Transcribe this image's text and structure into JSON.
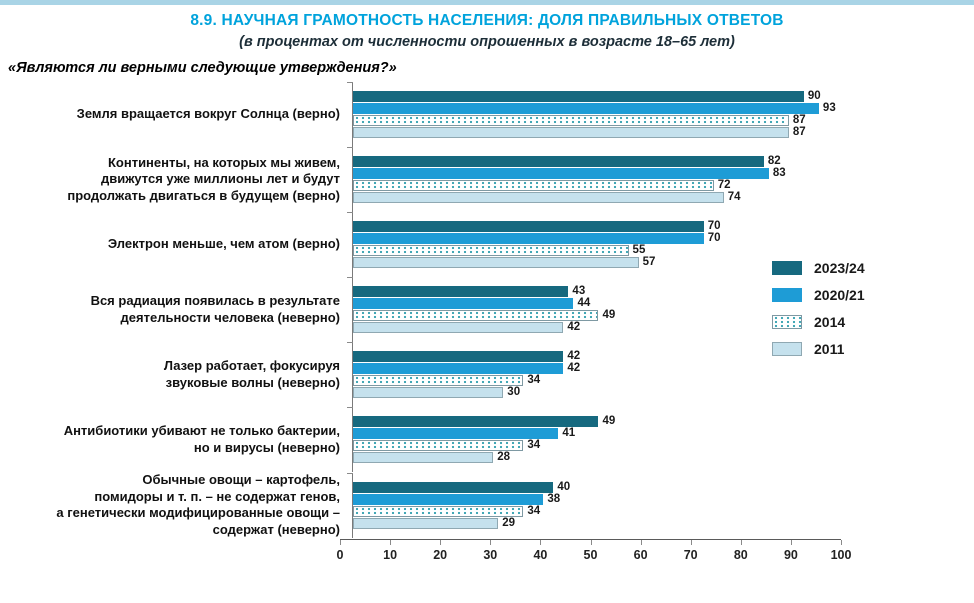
{
  "page": {
    "top_strip_color": "#a9d4e6",
    "title_color": "#00a3dc"
  },
  "header": {
    "title": "8.9. НАУЧНАЯ ГРАМОТНОСТЬ НАСЕЛЕНИЯ: ДОЛЯ ПРАВИЛЬНЫХ ОТВЕТОВ",
    "subtitle": "(в процентах от численности опрошенных в возрасте 18–65 лет)",
    "question": "«Являются ли верными следующие утверждения?»"
  },
  "chart_data": {
    "type": "bar",
    "orientation": "horizontal",
    "title": "8.9. Научная грамотность населения: доля правильных ответов",
    "xlabel": "",
    "ylabel": "",
    "xlim": [
      0,
      100
    ],
    "x_ticks": [
      0,
      10,
      20,
      30,
      40,
      50,
      60,
      70,
      80,
      90,
      100
    ],
    "grid": false,
    "legend_position": "right",
    "value_labels": true,
    "categories": [
      "Земля вращается вокруг Солнца (верно)",
      "Континенты, на которых мы живем,\nдвижутся уже миллионы лет и будут\nпродолжать двигаться в будущем (верно)",
      "Электрон меньше, чем атом (верно)",
      "Вся радиация появилась в результате\nдеятельности человека (неверно)",
      "Лазер работает, фокусируя\nзвуковые волны (неверно)",
      "Антибиотики убивают не только бактерии,\nно и вирусы (неверно)",
      "Обычные овощи – картофель,\nпомидоры и т. п. – не содержат генов,\nа генетически модифицированные овощи –\nсодержат (неверно)"
    ],
    "series": [
      {
        "name": "2023/24",
        "style": "solid-dark",
        "color": "#16697f",
        "values": [
          90,
          82,
          70,
          43,
          42,
          49,
          40
        ]
      },
      {
        "name": "2020/21",
        "style": "solid-blue",
        "color": "#1e9cd6",
        "values": [
          93,
          83,
          70,
          44,
          42,
          41,
          38
        ]
      },
      {
        "name": "2014",
        "style": "dotted",
        "color": "#ffffff",
        "dot_color": "#39a3b2",
        "values": [
          87,
          72,
          55,
          49,
          34,
          34,
          34
        ]
      },
      {
        "name": "2011",
        "style": "solid-light",
        "color": "#c5e1ed",
        "values": [
          87,
          74,
          57,
          42,
          30,
          28,
          29
        ]
      }
    ]
  }
}
